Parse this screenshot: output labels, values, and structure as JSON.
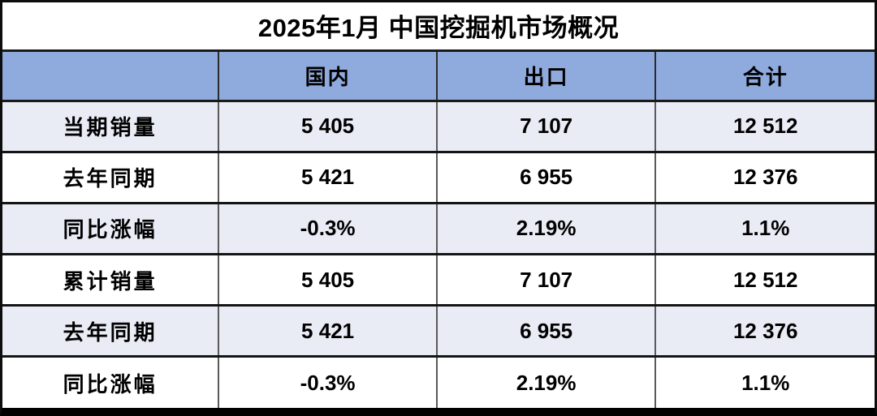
{
  "title": "2025年1月 中国挖掘机市场概况",
  "table": {
    "columns": {
      "label": "",
      "domestic": "国内",
      "export": "出口",
      "total": "合计"
    },
    "rows": [
      {
        "label": "当期销量",
        "values": [
          "5 405",
          "7 107",
          "12 512"
        ]
      },
      {
        "label": "去年同期",
        "values": [
          "5 421",
          "6 955",
          "12 376"
        ]
      },
      {
        "label": "同比涨幅",
        "values": [
          "-0.3%",
          "2.19%",
          "1.1%"
        ]
      },
      {
        "label": "累计销量",
        "values": [
          "5 405",
          "7 107",
          "12 512"
        ]
      },
      {
        "label": "去年同期",
        "values": [
          "5 421",
          "6 955",
          "12 376"
        ]
      },
      {
        "label": "同比涨幅",
        "values": [
          "-0.3%",
          "2.19%",
          "1.1%"
        ]
      }
    ]
  },
  "colors": {
    "header_bg": "#8FAADC",
    "row_alt_bg": "#E9ECF5",
    "row_bg": "#FFFFFF",
    "border": "#000000",
    "text": "#000000"
  },
  "chart_data": {
    "type": "table",
    "title": "2025年1月 中国挖掘机市场概况",
    "columns": [
      "",
      "国内",
      "出口",
      "合计"
    ],
    "rows": [
      [
        "当期销量",
        "5 405",
        "7 107",
        "12 512"
      ],
      [
        "去年同期",
        "5 421",
        "6 955",
        "12 376"
      ],
      [
        "同比涨幅",
        "-0.3%",
        "2.19%",
        "1.1%"
      ],
      [
        "累计销量",
        "5 405",
        "7 107",
        "12 512"
      ],
      [
        "去年同期",
        "5 421",
        "6 955",
        "12 376"
      ],
      [
        "同比涨幅",
        "-0.3%",
        "2.19%",
        "1.1%"
      ]
    ],
    "legend_position": "none",
    "grid": true
  }
}
